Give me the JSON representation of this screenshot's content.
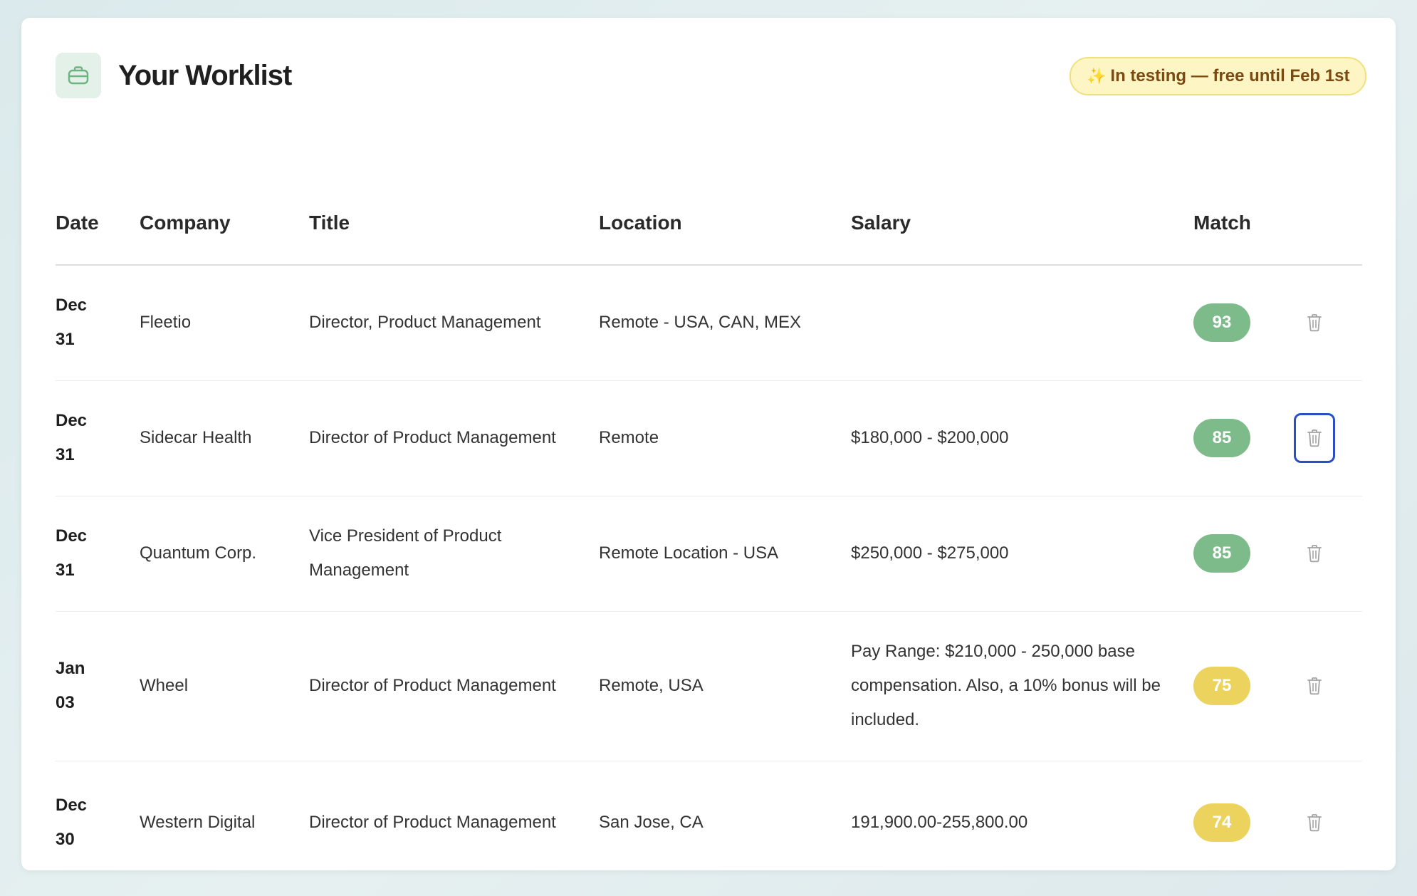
{
  "header": {
    "title": "Your Worklist",
    "badge_sparkle": "✨",
    "badge_text": "In testing — free until Feb 1st",
    "logo_icon": "briefcase-icon"
  },
  "table": {
    "columns": [
      "Date",
      "Company",
      "Title",
      "Location",
      "Salary",
      "Match"
    ],
    "rows": [
      {
        "date_month": "Dec",
        "date_day": "31",
        "company": "Fleetio",
        "title": "Director, Product Management",
        "location": "Remote - USA, CAN, MEX",
        "salary": "",
        "match": "93",
        "match_color": "#7dbb8a"
      },
      {
        "date_month": "Dec",
        "date_day": "31",
        "company": "Sidecar Health",
        "title": "Director of Product Management",
        "location": "Remote",
        "salary": "$180,000 - $200,000",
        "match": "85",
        "match_color": "#7dbb8a"
      },
      {
        "date_month": "Dec",
        "date_day": "31",
        "company": "Quantum Corp.",
        "title": "Vice President of Product Management",
        "location": "Remote Location - USA",
        "salary": "$250,000 - $275,000",
        "match": "85",
        "match_color": "#7dbb8a"
      },
      {
        "date_month": "Jan",
        "date_day": "03",
        "company": "Wheel",
        "title": "Director of Product Management",
        "location": "Remote, USA",
        "salary": "Pay Range: $210,000 - 250,000 base compensation. Also, a 10% bonus will be included.",
        "match": "75",
        "match_color": "#ebd35e"
      },
      {
        "date_month": "Dec",
        "date_day": "30",
        "company": "Western Digital",
        "title": "Director of Product Management",
        "location": "San Jose, CA",
        "salary": "191,900.00-255,800.00",
        "match": "74",
        "match_color": "#ebd35e"
      }
    ]
  },
  "delete_icon": "trash-icon",
  "colors": {
    "accent_green": "#7dbb8a",
    "accent_yellow": "#ebd35e",
    "focus_ring": "#2a4fc4",
    "badge_bg": "#fdf5c4",
    "badge_text": "#7a4a12"
  }
}
